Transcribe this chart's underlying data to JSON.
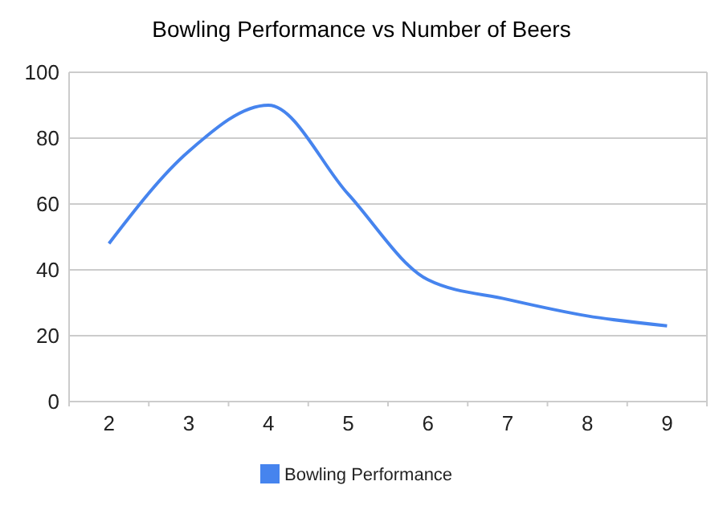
{
  "chart_data": {
    "type": "line",
    "title": "Bowling Performance vs Number of Beers",
    "categories": [
      "2",
      "3",
      "4",
      "5",
      "6",
      "7",
      "8",
      "9"
    ],
    "series": [
      {
        "name": "Bowling Performance",
        "color": "#4684ee",
        "values": [
          48,
          76,
          90,
          63,
          37,
          31,
          26,
          23
        ]
      }
    ],
    "ylim": [
      0,
      100
    ],
    "yticks": [
      0,
      20,
      40,
      60,
      80,
      100
    ],
    "grid": "y",
    "legend": "bottom",
    "marker": "none",
    "line_style": "solid"
  }
}
